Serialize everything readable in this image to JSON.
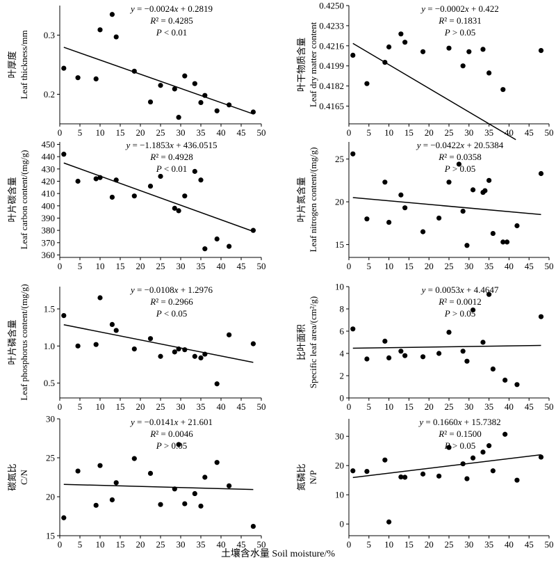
{
  "figure": {
    "xlabel": "土壤含水量 Soil moisture/%"
  },
  "chart_data": [
    {
      "type": "scatter",
      "ylabel_cn": "叶厚度",
      "ylabel_en": "Leaf thickness/mm",
      "equation": "y = −0.0024x + 0.2819",
      "r2": "R² = 0.4285",
      "p": "P < 0.01",
      "xlim": [
        0,
        50
      ],
      "ylim": [
        0.15,
        0.35
      ],
      "xticks": [
        0,
        5,
        10,
        15,
        20,
        25,
        30,
        35,
        40,
        45,
        50
      ],
      "yticks": [
        0.2,
        0.3
      ],
      "ytick_labels": [
        "0.2",
        "0.3"
      ],
      "fit": {
        "slope": -0.0024,
        "intercept": 0.2819,
        "x_range": [
          1,
          48
        ]
      },
      "points": [
        [
          1,
          0.244
        ],
        [
          4.5,
          0.228
        ],
        [
          9,
          0.226
        ],
        [
          10,
          0.309
        ],
        [
          13,
          0.335
        ],
        [
          14,
          0.297
        ],
        [
          18.5,
          0.239
        ],
        [
          22.5,
          0.187
        ],
        [
          25,
          0.215
        ],
        [
          28.5,
          0.209
        ],
        [
          29.5,
          0.161
        ],
        [
          31,
          0.231
        ],
        [
          33.5,
          0.218
        ],
        [
          35,
          0.186
        ],
        [
          36,
          0.198
        ],
        [
          39,
          0.172
        ],
        [
          42,
          0.182
        ],
        [
          48,
          0.17
        ]
      ]
    },
    {
      "type": "scatter",
      "ylabel_cn": "叶干物质含量",
      "ylabel_en": "Leaf dry matter content",
      "equation": "y = −0.0002x + 0.422",
      "r2": "R² = 0.1831",
      "p": "P > 0.05",
      "xlim": [
        0,
        50
      ],
      "ylim": [
        0.415,
        0.425
      ],
      "xticks": [
        0,
        5,
        10,
        15,
        20,
        25,
        30,
        35,
        40,
        45,
        50
      ],
      "yticks": [
        0.4165,
        0.4182,
        0.4199,
        0.4216,
        0.4233,
        0.425
      ],
      "ytick_labels": [
        "0.4165",
        "0.4182",
        "0.4199",
        "0.4216",
        "0.4233",
        "0.4250"
      ],
      "fit": {
        "slope": -0.0002,
        "intercept": 0.422,
        "x_range": [
          1,
          41.7
        ]
      },
      "points": [
        [
          1,
          0.4208
        ],
        [
          4.5,
          0.4184
        ],
        [
          9,
          0.4202
        ],
        [
          10,
          0.4215
        ],
        [
          13,
          0.4226
        ],
        [
          14,
          0.4219
        ],
        [
          18.5,
          0.4211
        ],
        [
          25,
          0.4214
        ],
        [
          28.5,
          0.4199
        ],
        [
          30,
          0.4211
        ],
        [
          33.5,
          0.4213
        ],
        [
          35,
          0.4193
        ],
        [
          38.5,
          0.4179
        ],
        [
          48,
          0.4212
        ]
      ]
    },
    {
      "type": "scatter",
      "ylabel_cn": "叶片碳含量",
      "ylabel_en": "Leaf carbon content/(mg/g)",
      "equation": "y = −1.1853x + 436.0515",
      "r2": "R² = 0.4928",
      "p": "P < 0.01",
      "xlim": [
        0,
        50
      ],
      "ylim": [
        358,
        452
      ],
      "xticks": [
        0,
        5,
        10,
        15,
        20,
        25,
        30,
        35,
        40,
        45,
        50
      ],
      "yticks": [
        360,
        370,
        380,
        390,
        400,
        410,
        420,
        430,
        440,
        450
      ],
      "ytick_labels": [
        "360",
        "370",
        "380",
        "390",
        "400",
        "410",
        "420",
        "430",
        "440",
        "450"
      ],
      "fit": {
        "slope": -1.1853,
        "intercept": 436.0515,
        "x_range": [
          1,
          48
        ]
      },
      "points": [
        [
          1,
          442
        ],
        [
          4.5,
          420
        ],
        [
          9,
          422
        ],
        [
          10,
          423
        ],
        [
          13,
          407
        ],
        [
          14,
          421
        ],
        [
          18.5,
          408
        ],
        [
          22.5,
          416
        ],
        [
          25,
          424
        ],
        [
          28.5,
          398
        ],
        [
          29.5,
          396
        ],
        [
          31,
          408
        ],
        [
          33.5,
          428
        ],
        [
          35,
          421
        ],
        [
          36,
          365
        ],
        [
          39,
          373
        ],
        [
          42,
          367
        ],
        [
          48,
          380
        ]
      ]
    },
    {
      "type": "scatter",
      "ylabel_cn": "叶片氮含量",
      "ylabel_en": "Leaf nitrogen content/(mg/g)",
      "equation": "y = −0.0422x + 20.5384",
      "r2": "R² = 0.0358",
      "p": "P > 0.05",
      "xlim": [
        0,
        50
      ],
      "ylim": [
        13.5,
        27
      ],
      "xticks": [
        0,
        5,
        10,
        15,
        20,
        25,
        30,
        35,
        40,
        45,
        50
      ],
      "yticks": [
        15,
        20,
        25
      ],
      "ytick_labels": [
        "15",
        "20",
        "25"
      ],
      "fit": {
        "slope": -0.0422,
        "intercept": 20.5384,
        "x_range": [
          1,
          48
        ]
      },
      "points": [
        [
          1,
          25.6
        ],
        [
          4.5,
          18
        ],
        [
          9,
          22.3
        ],
        [
          10,
          17.6
        ],
        [
          13,
          20.8
        ],
        [
          14,
          19.3
        ],
        [
          18.5,
          16.5
        ],
        [
          22.5,
          18.1
        ],
        [
          25,
          22.3
        ],
        [
          27.5,
          24.4
        ],
        [
          28.5,
          18.9
        ],
        [
          29.5,
          14.9
        ],
        [
          31,
          21.4
        ],
        [
          33.5,
          21.1
        ],
        [
          34,
          21.3
        ],
        [
          35,
          22.5
        ],
        [
          36,
          16.3
        ],
        [
          38.5,
          15.3
        ],
        [
          39.5,
          15.3
        ],
        [
          42,
          17.2
        ],
        [
          48,
          23.3
        ]
      ]
    },
    {
      "type": "scatter",
      "ylabel_cn": "叶片磷含量",
      "ylabel_en": "Leaf phosphorus content/(mg/g)",
      "equation": "y = −0.0108x + 1.2976",
      "r2": "R² = 0.2966",
      "p": "P < 0.05",
      "xlim": [
        0,
        50
      ],
      "ylim": [
        0.3,
        1.8
      ],
      "xticks": [
        0,
        5,
        10,
        15,
        20,
        25,
        30,
        35,
        40,
        45,
        50
      ],
      "yticks": [
        0.5,
        1.0,
        1.5
      ],
      "ytick_labels": [
        "0.5",
        "1.0",
        "1.5"
      ],
      "fit": {
        "slope": -0.0108,
        "intercept": 1.2976,
        "x_range": [
          1,
          48
        ]
      },
      "points": [
        [
          1,
          1.41
        ],
        [
          4.5,
          1.0
        ],
        [
          9,
          1.02
        ],
        [
          10,
          1.65
        ],
        [
          13,
          1.29
        ],
        [
          14,
          1.21
        ],
        [
          18.5,
          0.96
        ],
        [
          22.5,
          1.1
        ],
        [
          25,
          0.86
        ],
        [
          28.5,
          0.92
        ],
        [
          29.5,
          0.96
        ],
        [
          31,
          0.95
        ],
        [
          33.5,
          0.86
        ],
        [
          35,
          0.84
        ],
        [
          36,
          0.89
        ],
        [
          39,
          0.49
        ],
        [
          42,
          1.15
        ],
        [
          48,
          1.03
        ]
      ]
    },
    {
      "type": "scatter",
      "ylabel_cn": "比叶面积",
      "ylabel_en": "Specific leaf area/(cm²/g)",
      "equation": "y = 0.0053x + 4.4647",
      "r2": "R² = 0.0012",
      "p": "P > 0.05",
      "xlim": [
        0,
        50
      ],
      "ylim": [
        0,
        10
      ],
      "xticks": [
        0,
        5,
        10,
        15,
        20,
        25,
        30,
        35,
        40,
        45,
        50
      ],
      "yticks": [
        0,
        2,
        4,
        6,
        8,
        10
      ],
      "ytick_labels": [
        "0",
        "2",
        "4",
        "6",
        "8",
        "10"
      ],
      "fit": {
        "slope": 0.0053,
        "intercept": 4.4647,
        "x_range": [
          1,
          48
        ]
      },
      "points": [
        [
          1,
          6.2
        ],
        [
          4.5,
          3.5
        ],
        [
          9,
          5.1
        ],
        [
          10,
          3.6
        ],
        [
          13,
          4.2
        ],
        [
          14,
          3.8
        ],
        [
          18.5,
          3.7
        ],
        [
          22.5,
          4.0
        ],
        [
          25,
          5.9
        ],
        [
          28.5,
          4.2
        ],
        [
          29.5,
          3.3
        ],
        [
          31,
          7.9
        ],
        [
          33.5,
          5.0
        ],
        [
          35,
          9.3
        ],
        [
          36,
          2.6
        ],
        [
          39,
          1.6
        ],
        [
          42,
          1.2
        ],
        [
          48,
          7.3
        ]
      ]
    },
    {
      "type": "scatter",
      "ylabel_cn": "碳氮比",
      "ylabel_en": "C/N",
      "equation": "y = −0.0141x + 21.601",
      "r2": "R² = 0.0046",
      "p": "P > 0.05",
      "xlim": [
        0,
        50
      ],
      "ylim": [
        15,
        30
      ],
      "xticks": [
        0,
        5,
        10,
        15,
        20,
        25,
        30,
        35,
        40,
        45,
        50
      ],
      "yticks": [
        15,
        20,
        25,
        30
      ],
      "ytick_labels": [
        "15",
        "20",
        "25",
        "30"
      ],
      "fit": {
        "slope": -0.0141,
        "intercept": 21.601,
        "x_range": [
          1,
          48
        ]
      },
      "points": [
        [
          1,
          17.3
        ],
        [
          4.5,
          23.3
        ],
        [
          9,
          18.9
        ],
        [
          10,
          24.0
        ],
        [
          13,
          19.6
        ],
        [
          14,
          21.8
        ],
        [
          18.5,
          24.9
        ],
        [
          22.5,
          23.0
        ],
        [
          25,
          19.0
        ],
        [
          28.5,
          21.0
        ],
        [
          29.5,
          26.7
        ],
        [
          31,
          19.1
        ],
        [
          33.5,
          20.4
        ],
        [
          35,
          18.8
        ],
        [
          36,
          22.5
        ],
        [
          39,
          24.4
        ],
        [
          42,
          21.4
        ],
        [
          48,
          16.2
        ]
      ]
    },
    {
      "type": "scatter",
      "ylabel_cn": "氮磷比",
      "ylabel_en": "N/P",
      "equation": "y = 0.1660x + 15.7382",
      "r2": "R² = 0.1500",
      "p": "P > 0.05",
      "xlim": [
        0,
        50
      ],
      "ylim": [
        -4,
        36
      ],
      "xticks": [
        0,
        5,
        10,
        15,
        20,
        25,
        30,
        35,
        40,
        45,
        50
      ],
      "yticks": [
        0,
        10,
        20,
        30
      ],
      "ytick_labels": [
        "0",
        "10",
        "20",
        "30"
      ],
      "fit": {
        "slope": 0.166,
        "intercept": 15.7382,
        "x_range": [
          1,
          48
        ]
      },
      "points": [
        [
          1,
          18.2
        ],
        [
          4.5,
          18.0
        ],
        [
          9,
          21.9
        ],
        [
          10,
          0.7
        ],
        [
          13,
          16.1
        ],
        [
          14,
          16.0
        ],
        [
          18.5,
          17.1
        ],
        [
          22.5,
          16.4
        ],
        [
          25,
          26.2
        ],
        [
          28.5,
          20.6
        ],
        [
          29.5,
          15.5
        ],
        [
          31,
          22.6
        ],
        [
          33.5,
          24.6
        ],
        [
          35,
          26.8
        ],
        [
          36,
          18.2
        ],
        [
          39,
          30.7
        ],
        [
          42,
          15.0
        ],
        [
          48,
          22.9
        ]
      ]
    }
  ]
}
